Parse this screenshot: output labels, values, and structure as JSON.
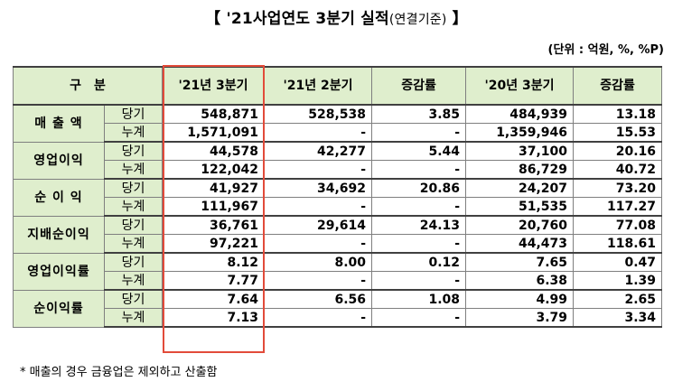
{
  "title": {
    "main": "【 '21사업연도 3분기 실적",
    "paren": "(연결기준)",
    "close": " 】"
  },
  "unit": "(단위 : 억원, %, %P)",
  "header": {
    "category": "구　분",
    "cols": [
      "'21년 3분기",
      "'21년 2분기",
      "증감률",
      "'20년 3분기",
      "증감률"
    ]
  },
  "groups": [
    {
      "name": "매 출 액",
      "rows": [
        {
          "label": "당기",
          "values": [
            "548,871",
            "528,538",
            "3.85",
            "484,939",
            "13.18"
          ]
        },
        {
          "label": "누계",
          "values": [
            "1,571,091",
            "-",
            "-",
            "1,359,946",
            "15.53"
          ]
        }
      ]
    },
    {
      "name": "영업이익",
      "rows": [
        {
          "label": "당기",
          "values": [
            "44,578",
            "42,277",
            "5.44",
            "37,100",
            "20.16"
          ]
        },
        {
          "label": "누계",
          "values": [
            "122,042",
            "-",
            "-",
            "86,729",
            "40.72"
          ]
        }
      ]
    },
    {
      "name": "순 이 익",
      "rows": [
        {
          "label": "당기",
          "values": [
            "41,927",
            "34,692",
            "20.86",
            "24,207",
            "73.20"
          ]
        },
        {
          "label": "누계",
          "values": [
            "111,967",
            "-",
            "-",
            "51,535",
            "117.27"
          ]
        }
      ]
    },
    {
      "name": "지배순이익",
      "rows": [
        {
          "label": "당기",
          "values": [
            "36,761",
            "29,614",
            "24.13",
            "20,760",
            "77.08"
          ]
        },
        {
          "label": "누계",
          "values": [
            "97,221",
            "-",
            "-",
            "44,473",
            "118.61"
          ]
        }
      ]
    },
    {
      "name": "영업이익률",
      "rows": [
        {
          "label": "당기",
          "values": [
            "8.12",
            "8.00",
            "0.12",
            "7.65",
            "0.47"
          ]
        },
        {
          "label": "누계",
          "values": [
            "7.77",
            "-",
            "-",
            "6.38",
            "1.39"
          ]
        }
      ]
    },
    {
      "name": "순이익률",
      "rows": [
        {
          "label": "당기",
          "values": [
            "7.64",
            "6.56",
            "1.08",
            "4.99",
            "2.65"
          ]
        },
        {
          "label": "누계",
          "values": [
            "7.13",
            "-",
            "-",
            "3.79",
            "3.34"
          ]
        }
      ]
    }
  ],
  "note": "* 매출의 경우 금융업은 제외하고 산출함",
  "colors": {
    "header_bg": "#dfeecd",
    "highlight_border": "#e24b3a"
  }
}
